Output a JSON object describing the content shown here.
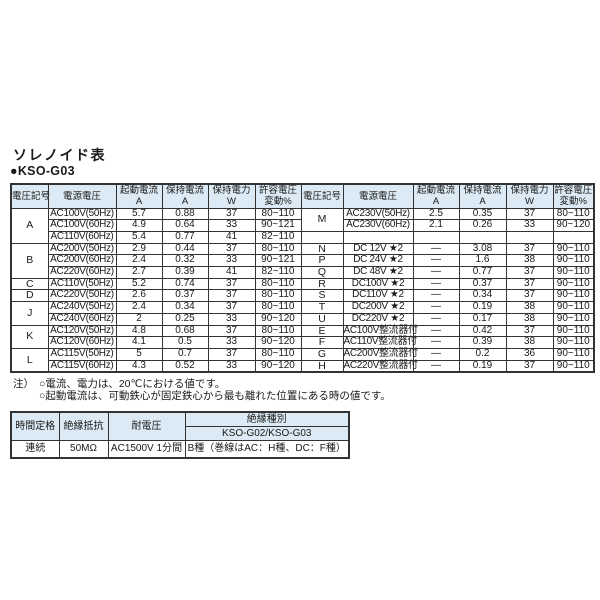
{
  "page": {
    "title": "ソレノイド表",
    "model_bullet": "●",
    "model": "KSO-G03"
  },
  "colors": {
    "header_bg": "#dbeaf4",
    "border": "#333333",
    "page_bg": "#ffffff"
  },
  "solenoid_table": {
    "headers": [
      {
        "key": "voltage-symbol",
        "l1": "電圧記号",
        "l2": ""
      },
      {
        "key": "source-voltage",
        "l1": "電源電圧",
        "l2": ""
      },
      {
        "key": "inrush-current",
        "l1": "起動電流",
        "l2": "A"
      },
      {
        "key": "holding-current",
        "l1": "保持電流",
        "l2": "A"
      },
      {
        "key": "holding-power",
        "l1": "保持電力",
        "l2": "W"
      },
      {
        "key": "voltage-fluctuation",
        "l1": "許容電圧",
        "l2": "変動%"
      }
    ],
    "left_groups": [
      {
        "symbol": "A",
        "rows": [
          [
            "AC100V(50Hz)",
            "5.7",
            "0.88",
            "37",
            "80~110"
          ],
          [
            "AC100V(60Hz)",
            "4.9",
            "0.64",
            "33",
            "90~121"
          ],
          [
            "AC110V(60Hz)",
            "5.4",
            "0.77",
            "41",
            "82~110"
          ]
        ]
      },
      {
        "symbol": "B",
        "rows": [
          [
            "AC200V(50Hz)",
            "2.9",
            "0.44",
            "37",
            "80~110"
          ],
          [
            "AC200V(60Hz)",
            "2.4",
            "0.32",
            "33",
            "90~121"
          ],
          [
            "AC220V(60Hz)",
            "2.7",
            "0.39",
            "41",
            "82~110"
          ]
        ]
      },
      {
        "symbol": "C",
        "rows": [
          [
            "AC110V(50Hz)",
            "5.2",
            "0.74",
            "37",
            "80~110"
          ]
        ]
      },
      {
        "symbol": "D",
        "rows": [
          [
            "AC220V(50Hz)",
            "2.6",
            "0.37",
            "37",
            "80~110"
          ]
        ]
      },
      {
        "symbol": "J",
        "rows": [
          [
            "AC240V(50Hz)",
            "2.4",
            "0.34",
            "37",
            "80~110"
          ],
          [
            "AC240V(60Hz)",
            "2",
            "0.25",
            "33",
            "90~120"
          ]
        ]
      },
      {
        "symbol": "K",
        "rows": [
          [
            "AC120V(50Hz)",
            "4.8",
            "0.68",
            "37",
            "80~110"
          ],
          [
            "AC120V(60Hz)",
            "4.1",
            "0.5",
            "33",
            "90~120"
          ]
        ]
      },
      {
        "symbol": "L",
        "rows": [
          [
            "AC115V(50Hz)",
            "5",
            "0.7",
            "37",
            "80~110"
          ],
          [
            "AC115V(60Hz)",
            "4.3",
            "0.52",
            "33",
            "90~120"
          ]
        ]
      }
    ],
    "right_groups": [
      {
        "symbol": "M",
        "rows": [
          [
            "AC230V(50Hz)",
            "2.5",
            "0.35",
            "37",
            "80~110"
          ],
          [
            "AC230V(60Hz)",
            "2.1",
            "0.26",
            "33",
            "90~120"
          ]
        ]
      },
      {
        "symbol": "",
        "rows": [
          [
            "",
            "",
            "",
            "",
            ""
          ]
        ]
      },
      {
        "symbol": "N",
        "rows": [
          [
            "DC 12V ★2",
            "—",
            "3.08",
            "37",
            "90~110"
          ]
        ]
      },
      {
        "symbol": "P",
        "rows": [
          [
            "DC 24V ★2",
            "—",
            "1.6",
            "38",
            "90~110"
          ]
        ]
      },
      {
        "symbol": "Q",
        "rows": [
          [
            "DC 48V ★2",
            "—",
            "0.77",
            "37",
            "90~110"
          ]
        ]
      },
      {
        "symbol": "R",
        "rows": [
          [
            "DC100V ★2",
            "—",
            "0.37",
            "37",
            "90~110"
          ]
        ]
      },
      {
        "symbol": "S",
        "rows": [
          [
            "DC110V ★2",
            "—",
            "0.34",
            "37",
            "90~110"
          ]
        ]
      },
      {
        "symbol": "T",
        "rows": [
          [
            "DC200V ★2",
            "—",
            "0.19",
            "38",
            "90~110"
          ]
        ]
      },
      {
        "symbol": "U",
        "rows": [
          [
            "DC220V ★2",
            "—",
            "0.17",
            "38",
            "90~110"
          ]
        ]
      },
      {
        "symbol": "E",
        "rows": [
          [
            "AC100V整流器付",
            "—",
            "0.42",
            "37",
            "90~110"
          ]
        ]
      },
      {
        "symbol": "F",
        "rows": [
          [
            "AC110V整流器付",
            "—",
            "0.39",
            "38",
            "90~110"
          ]
        ]
      },
      {
        "symbol": "G",
        "rows": [
          [
            "AC200V整流器付",
            "—",
            "0.2",
            "36",
            "90~110"
          ]
        ]
      },
      {
        "symbol": "H",
        "rows": [
          [
            "AC220V整流器付",
            "—",
            "0.19",
            "37",
            "90~110"
          ]
        ]
      }
    ]
  },
  "notes": {
    "prefix": "注）",
    "lines": [
      "○電流、電力は、20℃における値です。",
      "○起動電流は、可動鉄心が固定鉄心から最も離れた位置にある時の値です。"
    ]
  },
  "rating_table": {
    "headers": {
      "time_rating": "時間定格",
      "insulation_resistance": "絶縁抵抗",
      "withstand_voltage": "耐電圧",
      "insulation_class": "絶縁種別",
      "insulation_class_model": "KSO-G02/KSO-G03"
    },
    "row": {
      "time_rating": "連続",
      "insulation_resistance": "50MΩ",
      "withstand_voltage": "AC1500V 1分間",
      "insulation_class": "B種（巻線はAC：H種、DC：F種）"
    }
  }
}
